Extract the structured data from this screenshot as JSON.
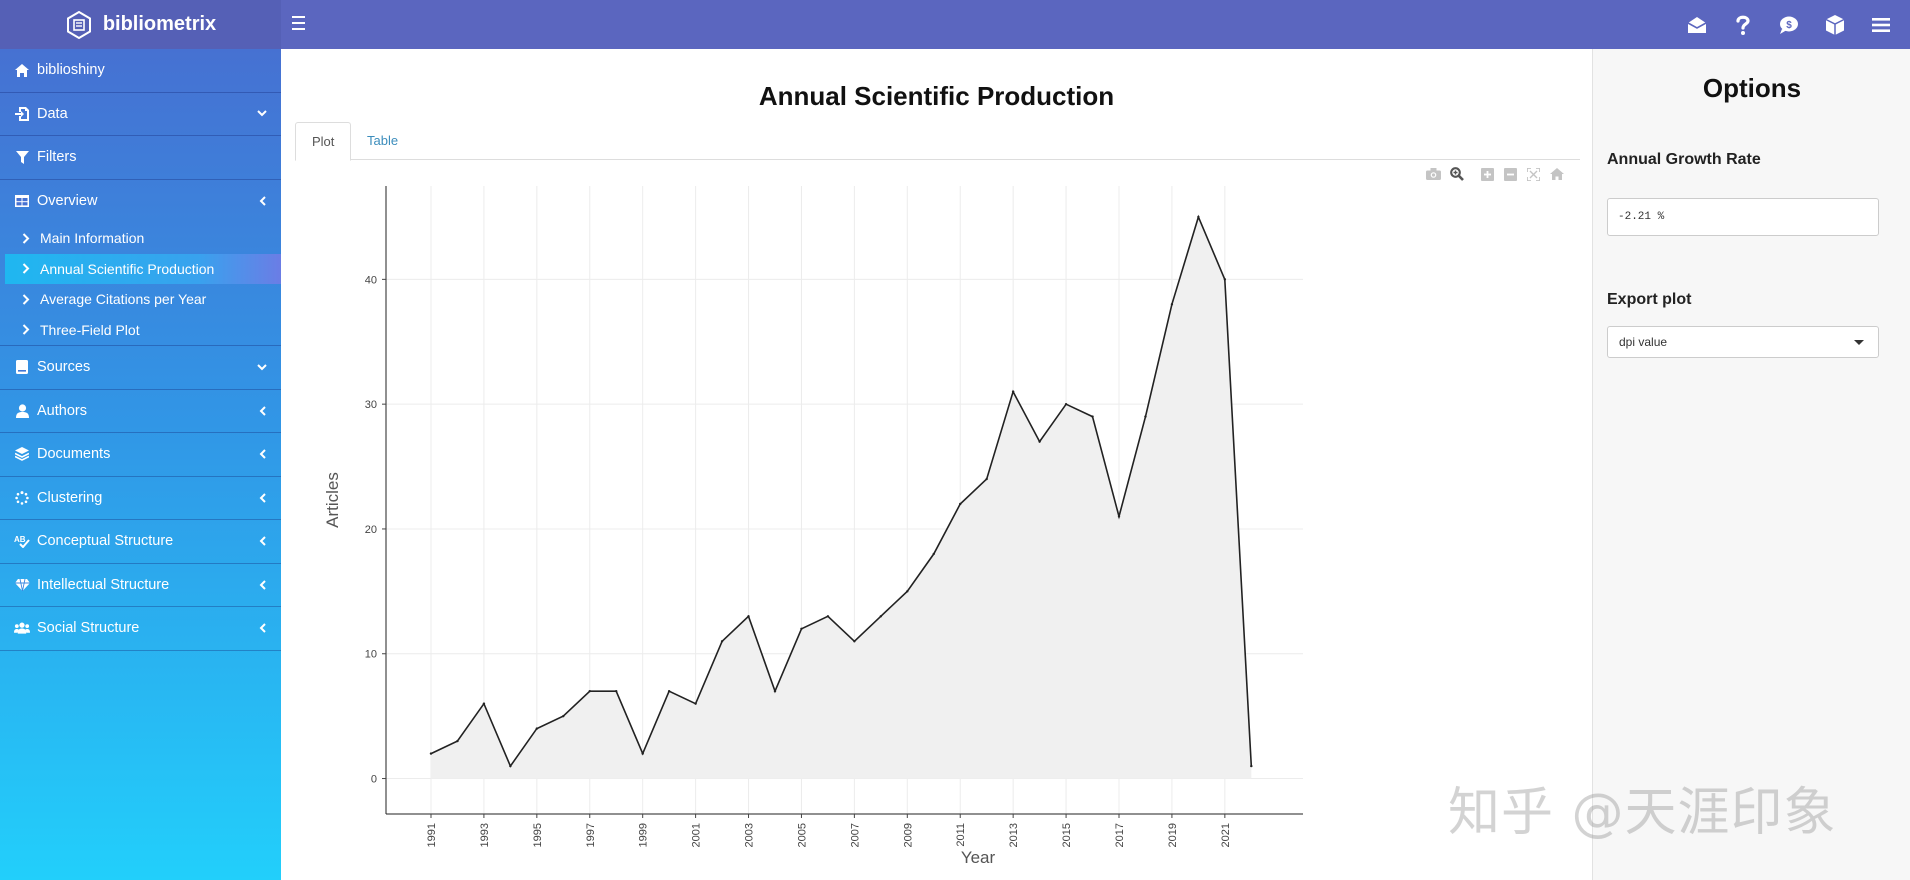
{
  "header": {
    "brand": "bibliometrix",
    "icons": [
      "envelope-open-icon",
      "question-icon",
      "comment-dollar-icon",
      "cube-icon",
      "menu-icon"
    ]
  },
  "sidebar": {
    "items": [
      {
        "label": "biblioshiny",
        "icon": "home-icon"
      },
      {
        "label": "Data",
        "icon": "file-import-icon",
        "chevron": "down"
      },
      {
        "label": "Filters",
        "icon": "filter-icon"
      },
      {
        "label": "Overview",
        "icon": "table-icon",
        "chevron": "left"
      },
      {
        "label": "Sources",
        "icon": "book-icon",
        "chevron": "down"
      },
      {
        "label": "Authors",
        "icon": "user-icon",
        "chevron": "left"
      },
      {
        "label": "Documents",
        "icon": "layers-icon",
        "chevron": "left"
      },
      {
        "label": "Clustering",
        "icon": "spinner-icon",
        "chevron": "left"
      },
      {
        "label": "Conceptual Structure",
        "icon": "spell-check-icon",
        "chevron": "left"
      },
      {
        "label": "Intellectual Structure",
        "icon": "gem-icon",
        "chevron": "left"
      },
      {
        "label": "Social Structure",
        "icon": "users-icon",
        "chevron": "left"
      }
    ],
    "overview_sub": [
      {
        "label": "Main Information"
      },
      {
        "label": "Annual Scientific Production",
        "active": true
      },
      {
        "label": "Average Citations per Year"
      },
      {
        "label": "Three-Field Plot"
      }
    ]
  },
  "main": {
    "title": "Annual Scientific Production",
    "tabs": [
      "Plot",
      "Table"
    ],
    "active_tab": "Plot",
    "modebar_icons": [
      "camera-icon",
      "zoom-icon",
      "zoom-in-icon",
      "zoom-out-icon",
      "autoscale-icon",
      "reset-axes-icon"
    ]
  },
  "options": {
    "title": "Options",
    "growth_label": "Annual Growth Rate",
    "growth_value": "-2.21 %",
    "export_label": "Export plot",
    "export_select": "dpi value"
  },
  "chart_data": {
    "type": "area",
    "title": "",
    "xlabel": "Year",
    "ylabel": "Articles",
    "x": [
      1991,
      1992,
      1993,
      1994,
      1995,
      1996,
      1997,
      1998,
      1999,
      2000,
      2001,
      2002,
      2003,
      2004,
      2005,
      2006,
      2007,
      2008,
      2009,
      2010,
      2011,
      2012,
      2013,
      2014,
      2015,
      2016,
      2017,
      2018,
      2019,
      2020,
      2021,
      2022
    ],
    "values": [
      2,
      3,
      6,
      1,
      4,
      5,
      7,
      7,
      2,
      7,
      6,
      11,
      13,
      7,
      12,
      13,
      11,
      13,
      15,
      18,
      22,
      24,
      31,
      27,
      30,
      29,
      21,
      29,
      38,
      45,
      40,
      1
    ],
    "xticks": [
      "1991",
      "1993",
      "1995",
      "1997",
      "1999",
      "2001",
      "2003",
      "2005",
      "2007",
      "2009",
      "2011",
      "2013",
      "2015",
      "2017",
      "2019",
      "2021"
    ],
    "yticks": [
      "0",
      "10",
      "20",
      "30",
      "40"
    ],
    "xlim": [
      1989.3,
      2023.5
    ],
    "ylim": [
      -2.2,
      47
    ],
    "grid": true,
    "line_color": "#222222",
    "fill_color": "#f0f0f0"
  },
  "watermark": "知乎 @天涯印象"
}
